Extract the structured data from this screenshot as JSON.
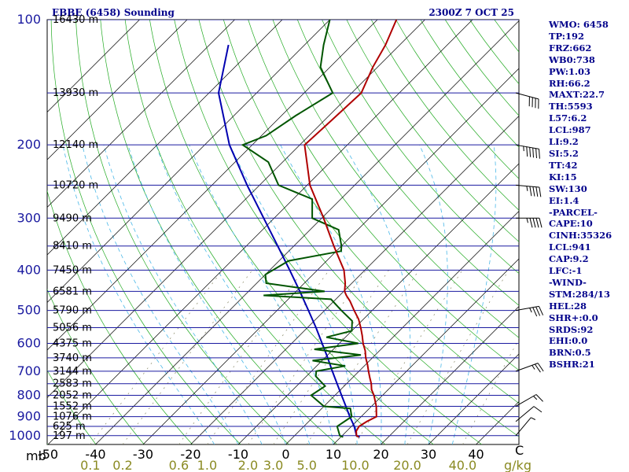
{
  "chart_data": {
    "type": "skew-t log-p sounding",
    "title": "EBBE (6458) Sounding",
    "time": "2300Z  7 OCT 25",
    "pressure_unit_label": "mb",
    "temperature_unit_label": "C",
    "mixing_ratio_unit_label": "g/kg",
    "pressure_ticks": [
      100,
      200,
      300,
      400,
      500,
      600,
      700,
      800,
      900,
      1000
    ],
    "temperature_ticks": [
      -50,
      -40,
      -30,
      -20,
      -10,
      0,
      10,
      20,
      30,
      40
    ],
    "mixing_ratio_ticks": [
      "0.1",
      "0.2",
      "0.6",
      "1.0",
      "2.0",
      "3.0",
      "5.0",
      "10.0",
      "20.0",
      "40.0"
    ],
    "height_levels": [
      {
        "p": 100,
        "label": "16430 m"
      },
      {
        "p": 150,
        "label": "13930 m"
      },
      {
        "p": 200,
        "label": "12140 m"
      },
      {
        "p": 250,
        "label": "10720 m"
      },
      {
        "p": 300,
        "label": "9490 m"
      },
      {
        "p": 350,
        "label": "8410 m"
      },
      {
        "p": 400,
        "label": "7450 m"
      },
      {
        "p": 450,
        "label": "6581 m"
      },
      {
        "p": 500,
        "label": "5790 m"
      },
      {
        "p": 550,
        "label": "5056 m"
      },
      {
        "p": 600,
        "label": "4375 m"
      },
      {
        "p": 650,
        "label": "3740 m"
      },
      {
        "p": 700,
        "label": "3144 m"
      },
      {
        "p": 750,
        "label": "2583 m"
      },
      {
        "p": 800,
        "label": "2052 m"
      },
      {
        "p": 850,
        "label": "1552 m"
      },
      {
        "p": 900,
        "label": "1076 m"
      },
      {
        "p": 950,
        "label": "625 m"
      },
      {
        "p": 1000,
        "label": "197 m"
      }
    ],
    "temperature_profile": [
      [
        1008,
        13.8
      ],
      [
        1000,
        13.0
      ],
      [
        975,
        12.0
      ],
      [
        950,
        11.6
      ],
      [
        925,
        12.2
      ],
      [
        900,
        13.2
      ],
      [
        850,
        11.0
      ],
      [
        800,
        8.2
      ],
      [
        775,
        6.5
      ],
      [
        750,
        5.2
      ],
      [
        725,
        3.6
      ],
      [
        700,
        2.0
      ],
      [
        675,
        0.4
      ],
      [
        650,
        -1.4
      ],
      [
        625,
        -3.0
      ],
      [
        600,
        -5.0
      ],
      [
        575,
        -6.8
      ],
      [
        550,
        -8.8
      ],
      [
        525,
        -11.0
      ],
      [
        500,
        -13.8
      ],
      [
        475,
        -16.6
      ],
      [
        460,
        -18.6
      ],
      [
        450,
        -19.8
      ],
      [
        430,
        -21.4
      ],
      [
        400,
        -24.4
      ],
      [
        350,
        -31.6
      ],
      [
        300,
        -39.6
      ],
      [
        250,
        -49.4
      ],
      [
        200,
        -59.0
      ],
      [
        175,
        -58.5
      ],
      [
        150,
        -58.0
      ],
      [
        130,
        -61.0
      ],
      [
        115,
        -63.0
      ],
      [
        100,
        -66.0
      ]
    ],
    "dewpoint_profile": [
      [
        1008,
        10.5
      ],
      [
        1000,
        9.5
      ],
      [
        950,
        7.0
      ],
      [
        900,
        8.0
      ],
      [
        860,
        6.0
      ],
      [
        850,
        0.0
      ],
      [
        800,
        -5.0
      ],
      [
        760,
        -4.0
      ],
      [
        720,
        -8.0
      ],
      [
        700,
        -9.0
      ],
      [
        680,
        -4.0
      ],
      [
        660,
        -12.0
      ],
      [
        640,
        -3.0
      ],
      [
        620,
        -14.0
      ],
      [
        600,
        -6.0
      ],
      [
        580,
        -14.0
      ],
      [
        560,
        -10.0
      ],
      [
        530,
        -12.0
      ],
      [
        500,
        -16.5
      ],
      [
        470,
        -21.0
      ],
      [
        460,
        -36.0
      ],
      [
        450,
        -24.0
      ],
      [
        430,
        -38.0
      ],
      [
        410,
        -40.0
      ],
      [
        380,
        -38.0
      ],
      [
        360,
        -29.0
      ],
      [
        350,
        -30.0
      ],
      [
        320,
        -34.0
      ],
      [
        300,
        -42.0
      ],
      [
        270,
        -46.0
      ],
      [
        250,
        -56.0
      ],
      [
        220,
        -63.0
      ],
      [
        200,
        -72.0
      ],
      [
        190,
        -69.0
      ],
      [
        170,
        -67.0
      ],
      [
        150,
        -64.0
      ],
      [
        130,
        -72.0
      ],
      [
        115,
        -76.0
      ],
      [
        100,
        -80.0
      ]
    ],
    "parcel_profile": [
      [
        1008,
        14.0
      ],
      [
        1000,
        13.0
      ],
      [
        950,
        10.6
      ],
      [
        900,
        7.6
      ],
      [
        850,
        4.6
      ],
      [
        800,
        1.4
      ],
      [
        750,
        -2.0
      ],
      [
        700,
        -5.6
      ],
      [
        650,
        -9.4
      ],
      [
        600,
        -13.6
      ],
      [
        550,
        -18.2
      ],
      [
        500,
        -23.4
      ],
      [
        450,
        -29.2
      ],
      [
        400,
        -35.8
      ],
      [
        350,
        -43.4
      ],
      [
        300,
        -52.2
      ],
      [
        250,
        -62.6
      ],
      [
        200,
        -74.8
      ],
      [
        150,
        -88.0
      ],
      [
        115,
        -96.0
      ]
    ],
    "wind_barbs": [
      {
        "p": 1000,
        "dir": 220,
        "speed_kt": 5
      },
      {
        "p": 925,
        "dir": 230,
        "speed_kt": 10
      },
      {
        "p": 850,
        "dir": 240,
        "speed_kt": 15
      },
      {
        "p": 700,
        "dir": 250,
        "speed_kt": 25
      },
      {
        "p": 500,
        "dir": 260,
        "speed_kt": 35
      },
      {
        "p": 300,
        "dir": 270,
        "speed_kt": 45
      },
      {
        "p": 250,
        "dir": 275,
        "speed_kt": 45
      },
      {
        "p": 200,
        "dir": 280,
        "speed_kt": 55
      },
      {
        "p": 150,
        "dir": 285,
        "speed_kt": 40
      }
    ]
  },
  "indices": [
    "WMO: 6458",
    "TP:192",
    "FRZ:662",
    "WB0:738",
    "PW:1.03",
    "RH:66.2",
    "MAXT:22.7",
    "TH:5593",
    "L57:6.2",
    "LCL:987",
    "LI:9.2",
    "SI:5.2",
    "TT:42",
    "KI:15",
    "SW:130",
    "EI:1.4",
    "-PARCEL-",
    "CAPE:10",
    "CINH:35326",
    "LCL:941",
    "CAP:9.2",
    "LFC:-1",
    "-WIND-",
    "STM:284/13",
    "HEL:28",
    "SHR+:0.0",
    "SRDS:92",
    "EHI:0.0",
    "BRN:0.5",
    "BSHR:21"
  ]
}
